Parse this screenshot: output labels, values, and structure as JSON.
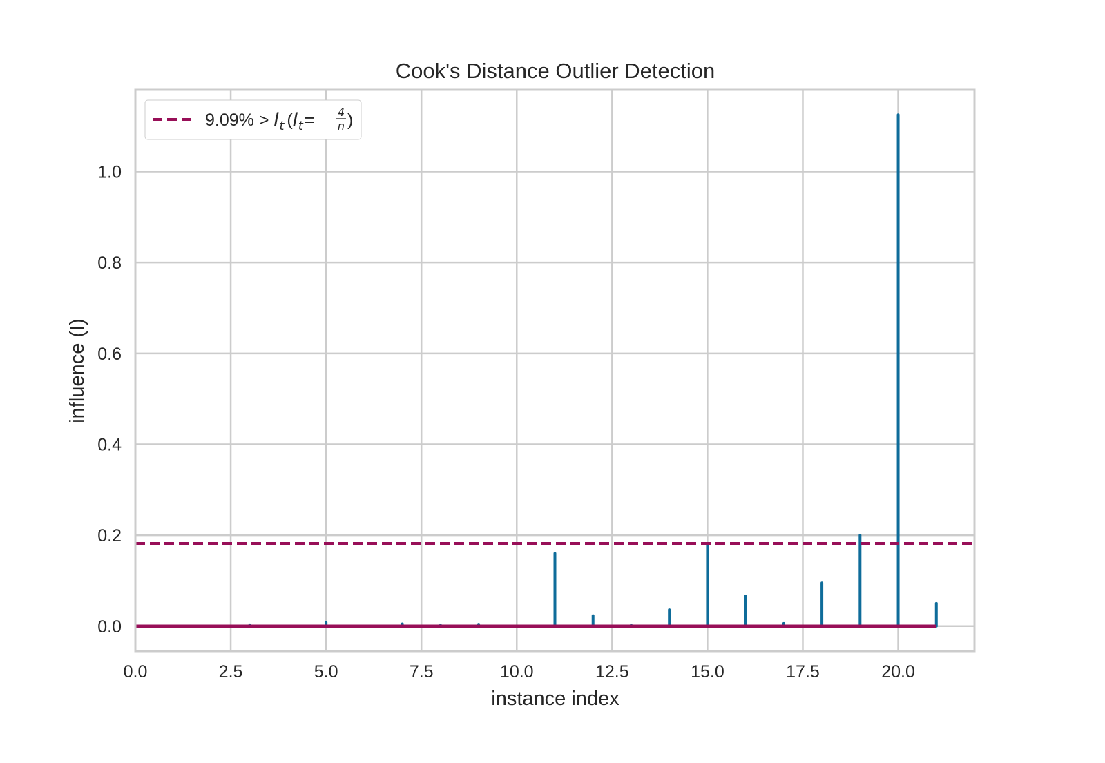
{
  "chart_data": {
    "type": "stem",
    "title": "Cook's Distance Outlier Detection",
    "xlabel": "instance index",
    "ylabel": "influence (I)",
    "xlim": [
      0,
      22
    ],
    "ylim": [
      -0.055,
      1.18
    ],
    "x_ticks": [
      0,
      2.5,
      5,
      7.5,
      10,
      12.5,
      15,
      17.5,
      20
    ],
    "x_tick_labels": [
      "0.0",
      "2.5",
      "5.0",
      "7.5",
      "10.0",
      "12.5",
      "15.0",
      "17.5",
      "20.0"
    ],
    "y_ticks": [
      0,
      0.2,
      0.4,
      0.6,
      0.8,
      1.0
    ],
    "y_tick_labels": [
      "0.0",
      "0.2",
      "0.4",
      "0.6",
      "0.8",
      "1.0"
    ],
    "grid": true,
    "series": {
      "x": [
        0,
        1,
        2,
        3,
        4,
        5,
        6,
        7,
        8,
        9,
        10,
        11,
        12,
        13,
        14,
        15,
        16,
        17,
        18,
        19,
        20,
        21
      ],
      "values": [
        0.0,
        0.0,
        0.0,
        0.003,
        0.0,
        0.008,
        0.0,
        0.005,
        0.002,
        0.004,
        0.0,
        0.16,
        0.023,
        0.002,
        0.036,
        0.177,
        0.066,
        0.006,
        0.095,
        0.2,
        1.125,
        0.05
      ],
      "color": "#0e6c9a"
    },
    "baseline": {
      "value": 0.0,
      "x_range": [
        0,
        21
      ],
      "color": "#980f58"
    },
    "threshold": {
      "value": 0.182,
      "style": "dashed",
      "color": "#980f58"
    },
    "legend": {
      "position": "top-left",
      "label_prefix": "9.09% > ",
      "label_math": "I",
      "label_sub": "t",
      "label_math2": "I",
      "label_sub2": "t",
      "label_eq": "=",
      "frac_num": "4",
      "frac_den": "n"
    },
    "colors": {
      "stem": "#0e6c9a",
      "threshold": "#980f58",
      "grid": "#cccccc",
      "frame": "#cccccc"
    }
  }
}
